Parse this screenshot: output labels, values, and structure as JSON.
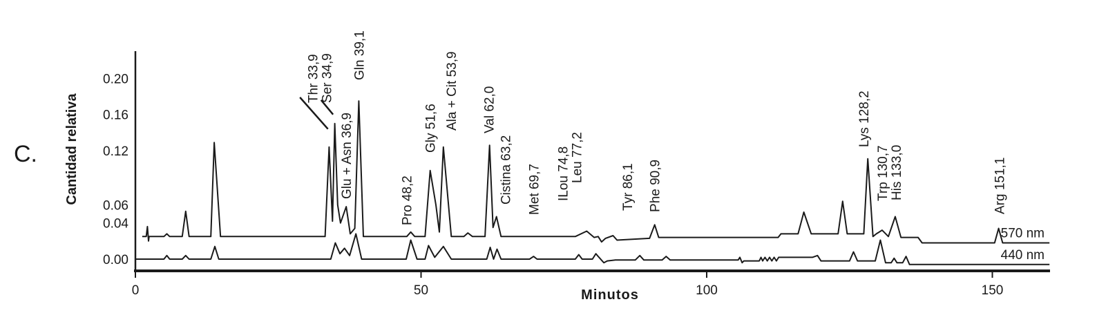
{
  "panel_label": "C.",
  "chart_data": {
    "type": "line",
    "xlabel": "Minutos",
    "ylabel": "Cantidad relativa",
    "xlim": [
      0,
      160
    ],
    "x_ticks": [
      0,
      50,
      100,
      150
    ],
    "y_ticks": [
      {
        "label": "0.20",
        "v": 0.2
      },
      {
        "label": "0.16",
        "v": 0.16
      },
      {
        "label": "0.12",
        "v": 0.12
      },
      {
        "label": "0.06",
        "v": 0.06
      },
      {
        "label": "0.04",
        "v": 0.04
      },
      {
        "label": "0.00",
        "v": 0.0
      }
    ],
    "ylim": [
      -0.013,
      0.215
    ],
    "grid": false,
    "series": [
      {
        "name": "570 nm",
        "color": "#1a1a1a",
        "points": [
          [
            1.2,
            0.025
          ],
          [
            1.9,
            0.025
          ],
          [
            2.1,
            0.036
          ],
          [
            2.3,
            0.02
          ],
          [
            2.4,
            0.025
          ],
          [
            5,
            0.025
          ],
          [
            5.5,
            0.028
          ],
          [
            6,
            0.025
          ],
          [
            8.2,
            0.025
          ],
          [
            8.8,
            0.053
          ],
          [
            9.4,
            0.025
          ],
          [
            13.2,
            0.025
          ],
          [
            13.8,
            0.129
          ],
          [
            14.9,
            0.025
          ],
          [
            33.2,
            0.025
          ],
          [
            33.9,
            0.124
          ],
          [
            34.5,
            0.042
          ],
          [
            34.9,
            0.15
          ],
          [
            35.4,
            0.06
          ],
          [
            35.9,
            0.04
          ],
          [
            36.9,
            0.058
          ],
          [
            37.6,
            0.028
          ],
          [
            38.4,
            0.034
          ],
          [
            39.1,
            0.175
          ],
          [
            39.9,
            0.025
          ],
          [
            47.5,
            0.025
          ],
          [
            48.2,
            0.03
          ],
          [
            48.9,
            0.025
          ],
          [
            50.7,
            0.025
          ],
          [
            51.6,
            0.098
          ],
          [
            52.6,
            0.06
          ],
          [
            53.2,
            0.03
          ],
          [
            53.9,
            0.124
          ],
          [
            55.3,
            0.025
          ],
          [
            57.5,
            0.025
          ],
          [
            58.2,
            0.029
          ],
          [
            59,
            0.025
          ],
          [
            61.2,
            0.025
          ],
          [
            62,
            0.126
          ],
          [
            62.6,
            0.035
          ],
          [
            63.2,
            0.047
          ],
          [
            64,
            0.025
          ],
          [
            77,
            0.025
          ],
          [
            79,
            0.031
          ],
          [
            80.3,
            0.024
          ],
          [
            81,
            0.025
          ],
          [
            81.6,
            0.019
          ],
          [
            82.3,
            0.023
          ],
          [
            83.6,
            0.026
          ],
          [
            84.3,
            0.021
          ],
          [
            90,
            0.023
          ],
          [
            90.9,
            0.038
          ],
          [
            91.6,
            0.024
          ],
          [
            112.5,
            0.024
          ],
          [
            113,
            0.028
          ],
          [
            116,
            0.028
          ],
          [
            117,
            0.052
          ],
          [
            118.3,
            0.028
          ],
          [
            123,
            0.028
          ],
          [
            123.8,
            0.064
          ],
          [
            124.6,
            0.028
          ],
          [
            127.5,
            0.028
          ],
          [
            128.2,
            0.111
          ],
          [
            129.1,
            0.025
          ],
          [
            129.7,
            0.028
          ],
          [
            130.7,
            0.032
          ],
          [
            131.8,
            0.025
          ],
          [
            133,
            0.047
          ],
          [
            134,
            0.024
          ],
          [
            137,
            0.024
          ],
          [
            137.7,
            0.018
          ],
          [
            150.4,
            0.018
          ],
          [
            151.1,
            0.034
          ],
          [
            151.8,
            0.018
          ],
          [
            160,
            0.018
          ]
        ]
      },
      {
        "name": "440 nm",
        "color": "#1a1a1a",
        "points": [
          [
            0,
            0.0
          ],
          [
            5,
            0.0
          ],
          [
            5.5,
            0.004
          ],
          [
            6,
            0.0
          ],
          [
            8.2,
            0.0
          ],
          [
            8.8,
            0.004
          ],
          [
            9.4,
            0.0
          ],
          [
            13.2,
            0.0
          ],
          [
            13.9,
            0.014
          ],
          [
            14.6,
            0.0
          ],
          [
            34.2,
            0.0
          ],
          [
            35,
            0.018
          ],
          [
            35.8,
            0.006
          ],
          [
            36.6,
            0.012
          ],
          [
            37.5,
            0.004
          ],
          [
            38.6,
            0.028
          ],
          [
            39.6,
            0.0
          ],
          [
            47.4,
            0.0
          ],
          [
            48.2,
            0.021
          ],
          [
            49.3,
            0.0
          ],
          [
            50.7,
            0.0
          ],
          [
            51.3,
            0.015
          ],
          [
            52.4,
            0.002
          ],
          [
            53.9,
            0.014
          ],
          [
            55.3,
            0.0
          ],
          [
            61.5,
            0.0
          ],
          [
            62.1,
            0.013
          ],
          [
            62.7,
            0.0
          ],
          [
            63.3,
            0.011
          ],
          [
            64,
            0.0
          ],
          [
            69,
            0.0
          ],
          [
            69.7,
            0.003
          ],
          [
            70.3,
            0.0
          ],
          [
            77,
            0.0
          ],
          [
            77.6,
            0.005
          ],
          [
            78.2,
            0.0
          ],
          [
            80,
            0.0
          ],
          [
            80.6,
            0.006
          ],
          [
            81,
            0.003
          ],
          [
            82,
            -0.004
          ],
          [
            82.6,
            -0.002
          ],
          [
            84,
            -0.001
          ],
          [
            87.5,
            -0.001
          ],
          [
            88.3,
            0.004
          ],
          [
            89,
            -0.001
          ],
          [
            92.2,
            -0.001
          ],
          [
            92.9,
            0.003
          ],
          [
            93.6,
            -0.001
          ],
          [
            105.5,
            -0.001
          ],
          [
            105.8,
            0.002
          ],
          [
            106.2,
            -0.004
          ],
          [
            106.5,
            -0.002
          ],
          [
            109.2,
            -0.002
          ],
          [
            109.5,
            0.002
          ],
          [
            109.8,
            -0.002
          ],
          [
            110.2,
            0.002
          ],
          [
            110.6,
            -0.002
          ],
          [
            111,
            0.002
          ],
          [
            111.4,
            -0.002
          ],
          [
            111.8,
            0.002
          ],
          [
            112.2,
            -0.002
          ],
          [
            112.6,
            0.002
          ],
          [
            113,
            0.002
          ],
          [
            118.5,
            0.002
          ],
          [
            119.4,
            0.004
          ],
          [
            120,
            -0.002
          ],
          [
            125,
            -0.002
          ],
          [
            125.7,
            0.008
          ],
          [
            126.4,
            -0.002
          ],
          [
            129.5,
            -0.002
          ],
          [
            130.4,
            0.021
          ],
          [
            131.3,
            -0.004
          ],
          [
            132.3,
            -0.004
          ],
          [
            132.8,
            0.001
          ],
          [
            133.3,
            -0.004
          ],
          [
            134.3,
            -0.004
          ],
          [
            134.9,
            0.003
          ],
          [
            135.5,
            -0.006
          ],
          [
            160,
            -0.006
          ]
        ]
      }
    ],
    "peak_labels": [
      {
        "text": "Thr 33,9",
        "x": 33.9,
        "leader": [
          [
            33.7,
            0.144
          ],
          [
            28.8,
            0.179
          ]
        ]
      },
      {
        "text": "Ser 34,9",
        "x": 34.9,
        "leader": [
          [
            34.6,
            0.16
          ],
          [
            32.5,
            0.176
          ]
        ]
      },
      {
        "text": "Glu + Asn 36,9",
        "x": 36.9
      },
      {
        "text": "Gln 39,1",
        "x": 39.1
      },
      {
        "text": "Pro 48,2",
        "x": 48.2
      },
      {
        "text": "Gly 51,6",
        "x": 51.6
      },
      {
        "text": "Ala + Cit 53,9",
        "x": 53.9
      },
      {
        "text": "Val 62,0",
        "x": 62.0
      },
      {
        "text": "Cistina 63,2",
        "x": 63.2
      },
      {
        "text": "Met 69,7",
        "x": 69.7
      },
      {
        "text": "ILou 74,8",
        "x": 74.8
      },
      {
        "text": "Leu 77,2",
        "x": 77.2
      },
      {
        "text": "Tyr 86,1",
        "x": 86.1
      },
      {
        "text": "Phe 90,9",
        "x": 90.9
      },
      {
        "text": "Lys 128,2",
        "x": 128.2
      },
      {
        "text": "Trp 130,7",
        "x": 130.7
      },
      {
        "text": "His 133,0",
        "x": 133.0
      },
      {
        "text": "Arg 151,1",
        "x": 151.1
      }
    ]
  }
}
